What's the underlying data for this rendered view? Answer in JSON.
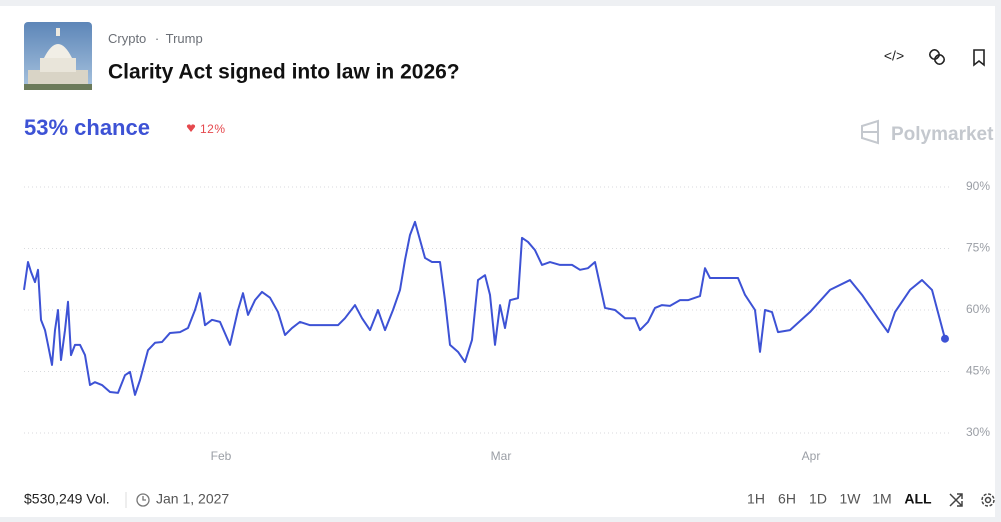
{
  "header": {
    "breadcrumb": [
      "Crypto",
      "Trump"
    ],
    "title": "Clarity Act signed into law in 2026?"
  },
  "chance": "53% chance",
  "change": "12%",
  "brand": "Polymarket",
  "chart_data": {
    "type": "line",
    "x": [
      11.3,
      11.7,
      12,
      12.4,
      12.7,
      13,
      13.4,
      13.7,
      14.1,
      14.4,
      14.7,
      15,
      15.4,
      15.7,
      16,
      16.4,
      16.9,
      17.4,
      17.9,
      18.4,
      19.1,
      19.9,
      20.7,
      21.4,
      21.9,
      22.4,
      22.9,
      23.7,
      24.4,
      25.1,
      25.9,
      26.9,
      27.7,
      28.4,
      28.9,
      29.4,
      30.1,
      30.9,
      31.9,
      32.7,
      33.2,
      33.7,
      34.4,
      35.1,
      35.9,
      36.7,
      37.4,
      38.1,
      38.9,
      39.9,
      41.4,
      42.7,
      43.4,
      44.4,
      45.1,
      45.9,
      46.7,
      47.4,
      48.2,
      48.9,
      49.4,
      49.9,
      50.4,
      50.9,
      51.4,
      52.1,
      52.9,
      53.4,
      53.9,
      54.7,
      55.4,
      56.1,
      56.7,
      57.4,
      57.9,
      58.4,
      58.9,
      59.4,
      59.9,
      60.7,
      61.1,
      61.7,
      62.4,
      63.1,
      63.9,
      64.9,
      66.1,
      66.9,
      67.7,
      68.4,
      68.9,
      69.4,
      70.4,
      71.4,
      72.4,
      72.9,
      73.7,
      74.4,
      75.1,
      75.9,
      76.9,
      77.7,
      78.9,
      79.4,
      79.9,
      80.9,
      82.7,
      83.4,
      84.4,
      84.9,
      85.4,
      86.1,
      86.7,
      87.9,
      89.9,
      91.9,
      93.9,
      95.1,
      96.7,
      97.7,
      98.4,
      99.9,
      101.1,
      102.1,
      103.4
    ],
    "series": [
      {
        "color": "#3d52d5",
        "values": [
          64.9,
          71.7,
          69.3,
          66.8,
          69.8,
          57.6,
          55.1,
          51.5,
          46.6,
          55.1,
          60,
          47.8,
          55.1,
          62,
          49,
          51.5,
          51.5,
          49,
          41.7,
          42.4,
          41.7,
          40,
          39.8,
          44.1,
          44.9,
          39.3,
          42.9,
          50.2,
          52,
          52.2,
          54.4,
          54.6,
          55.6,
          60,
          64.1,
          56.3,
          57.6,
          57.1,
          51.5,
          60,
          64.1,
          58.8,
          62.4,
          64.4,
          63,
          59.5,
          53.9,
          55.6,
          57.1,
          56.3,
          56.3,
          56.3,
          58,
          61.2,
          58,
          55.1,
          60,
          55.1,
          60,
          64.9,
          72.2,
          78.3,
          81.5,
          77.1,
          72.7,
          71.7,
          71.7,
          62.4,
          51.5,
          49.8,
          47.3,
          52.7,
          67.3,
          68.5,
          63.7,
          51.5,
          61.2,
          55.6,
          62.4,
          62.9,
          77.6,
          76.6,
          74.6,
          71,
          71.7,
          71,
          71,
          69.8,
          70.2,
          71.7,
          66.1,
          60.5,
          60,
          58,
          58,
          55.1,
          57.1,
          60.5,
          61.2,
          61,
          62.4,
          62.4,
          63.4,
          70.2,
          67.8,
          67.8,
          67.8,
          63.7,
          60,
          49.8,
          60,
          59.5,
          54.6,
          55.1,
          59.5,
          64.9,
          67.3,
          63.7,
          58,
          54.6,
          59.5,
          64.9,
          67.3,
          64.9,
          53
        ]
      }
    ],
    "xlim": [
      11,
      104
    ],
    "xticks": [
      {
        "value": 31,
        "label": "Feb"
      },
      {
        "value": 59,
        "label": "Mar"
      },
      {
        "value": 90,
        "label": "Apr"
      }
    ],
    "ylim": [
      30,
      90
    ],
    "yticks": [
      {
        "value": 30,
        "label": "30%"
      },
      {
        "value": 45,
        "label": "45%"
      },
      {
        "value": 60,
        "label": "60%"
      },
      {
        "value": 75,
        "label": "75%"
      },
      {
        "value": 90,
        "label": "90%"
      }
    ],
    "grid": true
  },
  "footer": {
    "volume": "$530,249 Vol.",
    "end_date": "Jan 1, 2027",
    "ranges": [
      "1H",
      "6H",
      "1D",
      "1W",
      "1M",
      "ALL"
    ]
  }
}
